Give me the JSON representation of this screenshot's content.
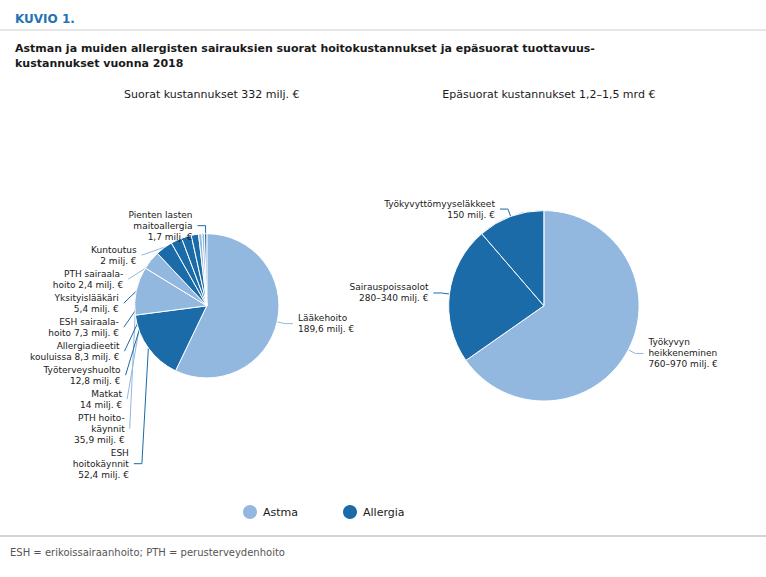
{
  "title": "Astman ja muiden allergisten sairauksien suorat hoitokustannukset ja epäsuorat tuottavuus-\nkustannukset vuonna 2018",
  "subtitle": "KUVIO 1.",
  "annotations": [
    "ESH = erikoissairaanhoito; PTH = perusterveydenhoito"
  ],
  "legend_entries": [
    {
      "name": "Astma",
      "color": "#92B8E0"
    },
    {
      "name": "Allergia",
      "color": "#1B6BA8"
    }
  ],
  "chart_data": [
    {
      "type": "pie",
      "title": "Suorat kustannukset 332 milj. €",
      "categories": [
        "Lääkehoito\n189,6 milj. €",
        "ESH\nhoitokäynnit\n52,4 milj. €",
        "PTH hoito-\nkäynnit\n35,9 milj. €",
        "Matkat\n14 milj. €",
        "Työterveyshuolto\n12,8 milj. €",
        "Allergiadieetit\nkouluissa 8,3 milj. €",
        "ESH sairaala-\nhoito 7,3 milj. €",
        "Yksityislääkäri\n5,4 milj. €",
        "PTH sairaala-\nhoito 2,4 milj. €",
        "Kuntoutus\n2 milj. €",
        "Pienten lasten\nmaitoallergia\n1,7 milj. €"
      ],
      "values": [
        189.6,
        52.4,
        35.9,
        14.0,
        12.8,
        8.3,
        7.3,
        5.4,
        2.4,
        2.0,
        1.7
      ],
      "colors": [
        "#92B8E0",
        "#1B6BA8",
        "#92B8E0",
        "#92B8E0",
        "#1B6BA8",
        "#1B6BA8",
        "#1B6BA8",
        "#1B6BA8",
        "#92B8E0",
        "#92B8E0",
        "#1B6BA8"
      ]
    },
    {
      "type": "pie",
      "title": "Epäsuorat kustannukset 1,2–1,5 mrd €",
      "categories": [
        "Työkyvyn\nheikkeneminen\n760–970 milj. €",
        "Sairauspoissaolot\n280–340 milj. €",
        "Työkyvyttömyyseläkkeet\n150 milj. €"
      ],
      "values": [
        865,
        310,
        150
      ],
      "colors": [
        "#92B8E0",
        "#1B6BA8",
        "#1B6BA8"
      ]
    }
  ]
}
